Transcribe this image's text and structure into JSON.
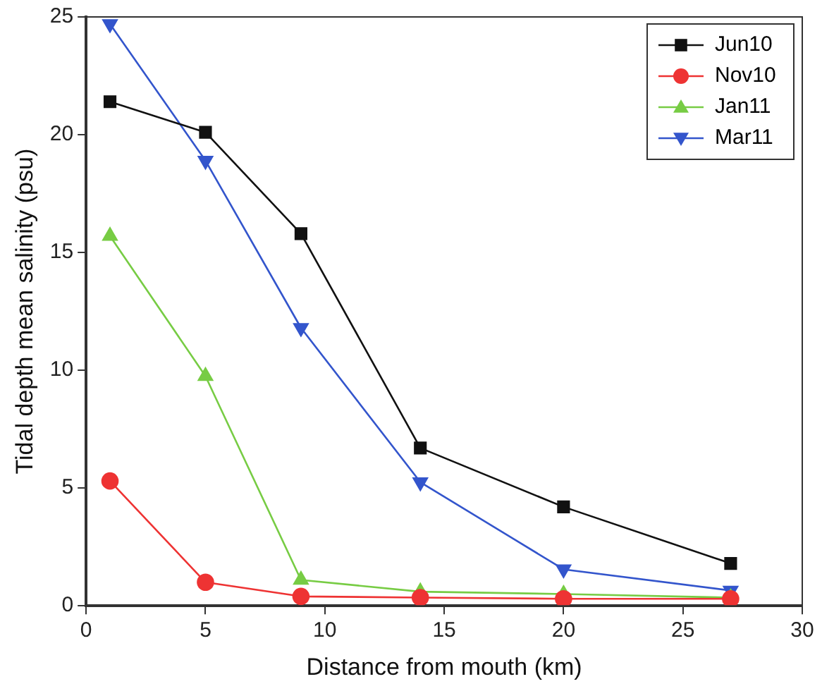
{
  "chart_data": {
    "type": "line",
    "xlabel": "Distance from mouth (km)",
    "ylabel": "Tidal depth mean salinity (psu)",
    "xlim": [
      0,
      30
    ],
    "xticks": [
      0,
      5,
      10,
      15,
      20,
      25,
      30
    ],
    "ylim": [
      0,
      25
    ],
    "yticks": [
      0,
      5,
      10,
      15,
      20,
      25
    ],
    "grid": false,
    "legend": "top right",
    "x": [
      1,
      5,
      9,
      14,
      20,
      27
    ],
    "series": [
      {
        "name": "Jun10",
        "color": "#111111",
        "marker": "square",
        "values": [
          21.4,
          20.1,
          15.8,
          6.7,
          4.2,
          1.8
        ]
      },
      {
        "name": "Nov10",
        "color": "#ee3333",
        "marker": "circle",
        "values": [
          5.3,
          1.0,
          0.4,
          0.35,
          0.3,
          0.3
        ]
      },
      {
        "name": "Jan11",
        "color": "#77cc44",
        "marker": "triangle",
        "values": [
          15.7,
          9.75,
          1.1,
          0.6,
          0.5,
          0.35
        ]
      },
      {
        "name": "Mar11",
        "color": "#3355cc",
        "marker": "triangle-down",
        "values": [
          24.7,
          18.9,
          11.8,
          5.25,
          1.55,
          0.65
        ]
      }
    ]
  }
}
